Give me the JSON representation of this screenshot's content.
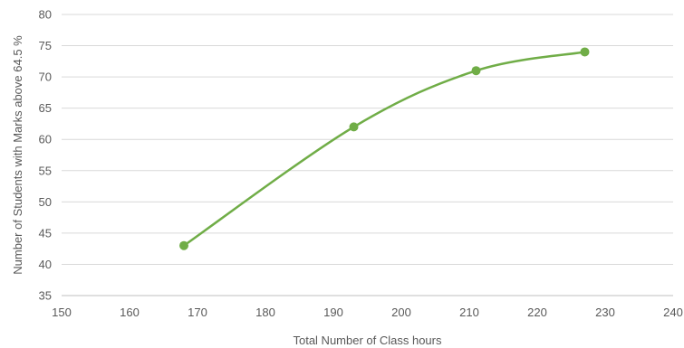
{
  "chart_data": {
    "type": "scatter",
    "title": "",
    "xlabel": "Total Number of Class hours",
    "ylabel": "Number of Students with Marks above 64.5 %",
    "xlim": [
      150,
      240
    ],
    "ylim": [
      35,
      80
    ],
    "xticks": [
      150,
      160,
      170,
      180,
      190,
      200,
      210,
      220,
      230,
      240
    ],
    "yticks": [
      35,
      40,
      45,
      50,
      55,
      60,
      65,
      70,
      75,
      80
    ],
    "grid": "horizontal",
    "legend": "none",
    "smoothed_line": true,
    "series": [
      {
        "color": "#70ad47",
        "x": [
          168,
          193,
          211,
          227
        ],
        "y": [
          43,
          62,
          71,
          74
        ]
      }
    ]
  }
}
